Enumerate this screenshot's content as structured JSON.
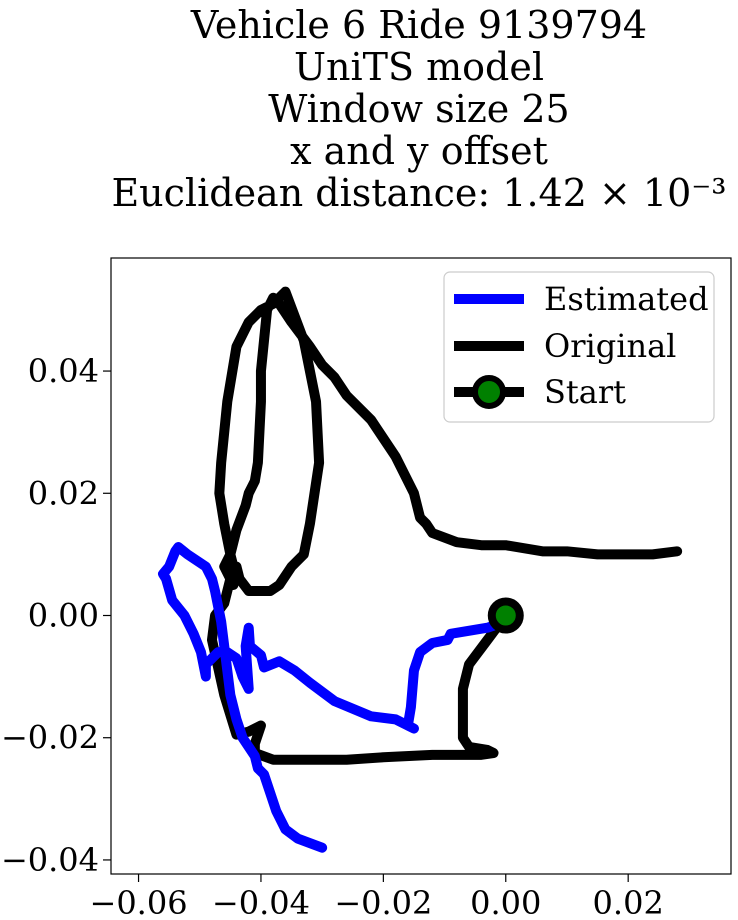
{
  "chart_data": {
    "type": "line",
    "title": [
      "Vehicle 6 Ride 9139794",
      "UniTS model",
      "Window size 25",
      "x and y offset",
      "Euclidean distance: 1.42 × 10⁻³"
    ],
    "xlabel": "",
    "ylabel": "",
    "xlim": [
      -0.0645,
      0.0368
    ],
    "ylim": [
      -0.0423,
      0.0585
    ],
    "xticks": [
      -0.06,
      -0.04,
      -0.02,
      0.0,
      0.02
    ],
    "xtick_labels": [
      "−0.06",
      "−0.04",
      "−0.02",
      "0.00",
      "0.02"
    ],
    "yticks": [
      -0.04,
      -0.02,
      0.0,
      0.02,
      0.04
    ],
    "ytick_labels": [
      "−0.04",
      "−0.02",
      "0.00",
      "0.02",
      "0.04"
    ],
    "grid": false,
    "legend_position": "top-right",
    "series": [
      {
        "name": "Estimated",
        "color": "#0000ff",
        "x": [
          0.0,
          -0.003,
          -0.009,
          -0.0095,
          -0.012,
          -0.014,
          -0.015,
          -0.0155,
          -0.016,
          -0.015,
          -0.018,
          -0.022,
          -0.028,
          -0.032,
          -0.0345,
          -0.037,
          -0.0395,
          -0.04,
          -0.0418,
          -0.042,
          -0.0425,
          -0.042,
          -0.043,
          -0.044,
          -0.0455,
          -0.047,
          -0.049,
          -0.049,
          -0.0498,
          -0.051,
          -0.0525,
          -0.0545,
          -0.0555,
          -0.056,
          -0.055,
          -0.054,
          -0.0535,
          -0.052,
          -0.0505,
          -0.049,
          -0.048,
          -0.0475,
          -0.0465,
          -0.046,
          -0.0455,
          -0.045,
          -0.044,
          -0.043,
          -0.041,
          -0.0405,
          -0.0395,
          -0.0385,
          -0.0375,
          -0.036,
          -0.034,
          -0.03
        ],
        "y": [
          -0.001,
          -0.002,
          -0.003,
          -0.004,
          -0.0045,
          -0.006,
          -0.009,
          -0.015,
          -0.018,
          -0.0185,
          -0.017,
          -0.0165,
          -0.014,
          -0.011,
          -0.009,
          -0.0075,
          -0.0085,
          -0.0065,
          -0.005,
          -0.002,
          -0.005,
          -0.012,
          -0.01,
          -0.007,
          -0.006,
          -0.006,
          -0.008,
          -0.01,
          -0.006,
          -0.003,
          0.0,
          0.0025,
          0.006,
          0.0068,
          0.008,
          0.0105,
          0.0112,
          0.01,
          0.009,
          0.008,
          0.006,
          0.004,
          -0.001,
          -0.005,
          -0.009,
          -0.013,
          -0.017,
          -0.02,
          -0.023,
          -0.025,
          -0.026,
          -0.029,
          -0.032,
          -0.035,
          -0.0365,
          -0.038
        ]
      },
      {
        "name": "Original",
        "color": "#000000",
        "x": [
          0.0,
          -0.003,
          -0.006,
          -0.007,
          -0.007,
          -0.007,
          -0.006,
          -0.003,
          -0.002,
          -0.004,
          -0.008,
          -0.012,
          -0.02,
          -0.026,
          -0.033,
          -0.038,
          -0.041,
          -0.041,
          -0.04,
          -0.042,
          -0.044,
          -0.046,
          -0.048,
          -0.0475,
          -0.046,
          -0.045,
          -0.044,
          -0.0435,
          -0.042,
          -0.041,
          -0.04,
          -0.0385,
          -0.037,
          -0.035,
          -0.033,
          -0.032,
          -0.0305,
          -0.031,
          -0.033,
          -0.036,
          -0.038,
          -0.04,
          -0.042,
          -0.044,
          -0.0455,
          -0.0465,
          -0.0468,
          -0.046,
          -0.045,
          -0.0445,
          -0.0445,
          -0.0455,
          -0.046,
          -0.045,
          -0.044,
          -0.0425,
          -0.042,
          -0.041,
          -0.0405,
          -0.04,
          -0.04,
          -0.0395,
          -0.039,
          -0.038,
          -0.037,
          -0.035,
          -0.032,
          -0.03,
          -0.028,
          -0.026,
          -0.022,
          -0.018,
          -0.015,
          -0.014,
          -0.013,
          -0.012,
          -0.008,
          -0.004,
          0.0,
          0.006,
          0.01,
          0.015,
          0.02,
          0.024,
          0.028
        ],
        "y": [
          0.0,
          -0.004,
          -0.008,
          -0.012,
          -0.016,
          -0.02,
          -0.0215,
          -0.022,
          -0.0225,
          -0.0228,
          -0.0228,
          -0.0228,
          -0.0232,
          -0.0236,
          -0.0236,
          -0.0236,
          -0.0225,
          -0.021,
          -0.018,
          -0.019,
          -0.0195,
          -0.013,
          -0.004,
          0.0,
          0.002,
          0.006,
          0.008,
          0.006,
          0.004,
          0.004,
          0.004,
          0.004,
          0.005,
          0.008,
          0.01,
          0.015,
          0.025,
          0.035,
          0.045,
          0.053,
          0.051,
          0.05,
          0.048,
          0.044,
          0.035,
          0.025,
          0.02,
          0.015,
          0.01,
          0.008,
          0.005,
          0.007,
          0.008,
          0.01,
          0.014,
          0.018,
          0.02,
          0.022,
          0.025,
          0.035,
          0.04,
          0.045,
          0.05,
          0.052,
          0.051,
          0.048,
          0.044,
          0.041,
          0.039,
          0.036,
          0.032,
          0.026,
          0.02,
          0.016,
          0.015,
          0.0135,
          0.012,
          0.0115,
          0.0115,
          0.0105,
          0.0105,
          0.01,
          0.01,
          0.01,
          0.0105
        ]
      }
    ],
    "start_marker": {
      "name": "Start",
      "x": 0.0,
      "y": 0.0,
      "edge_color": "#000000",
      "face_color": "#008000"
    }
  }
}
